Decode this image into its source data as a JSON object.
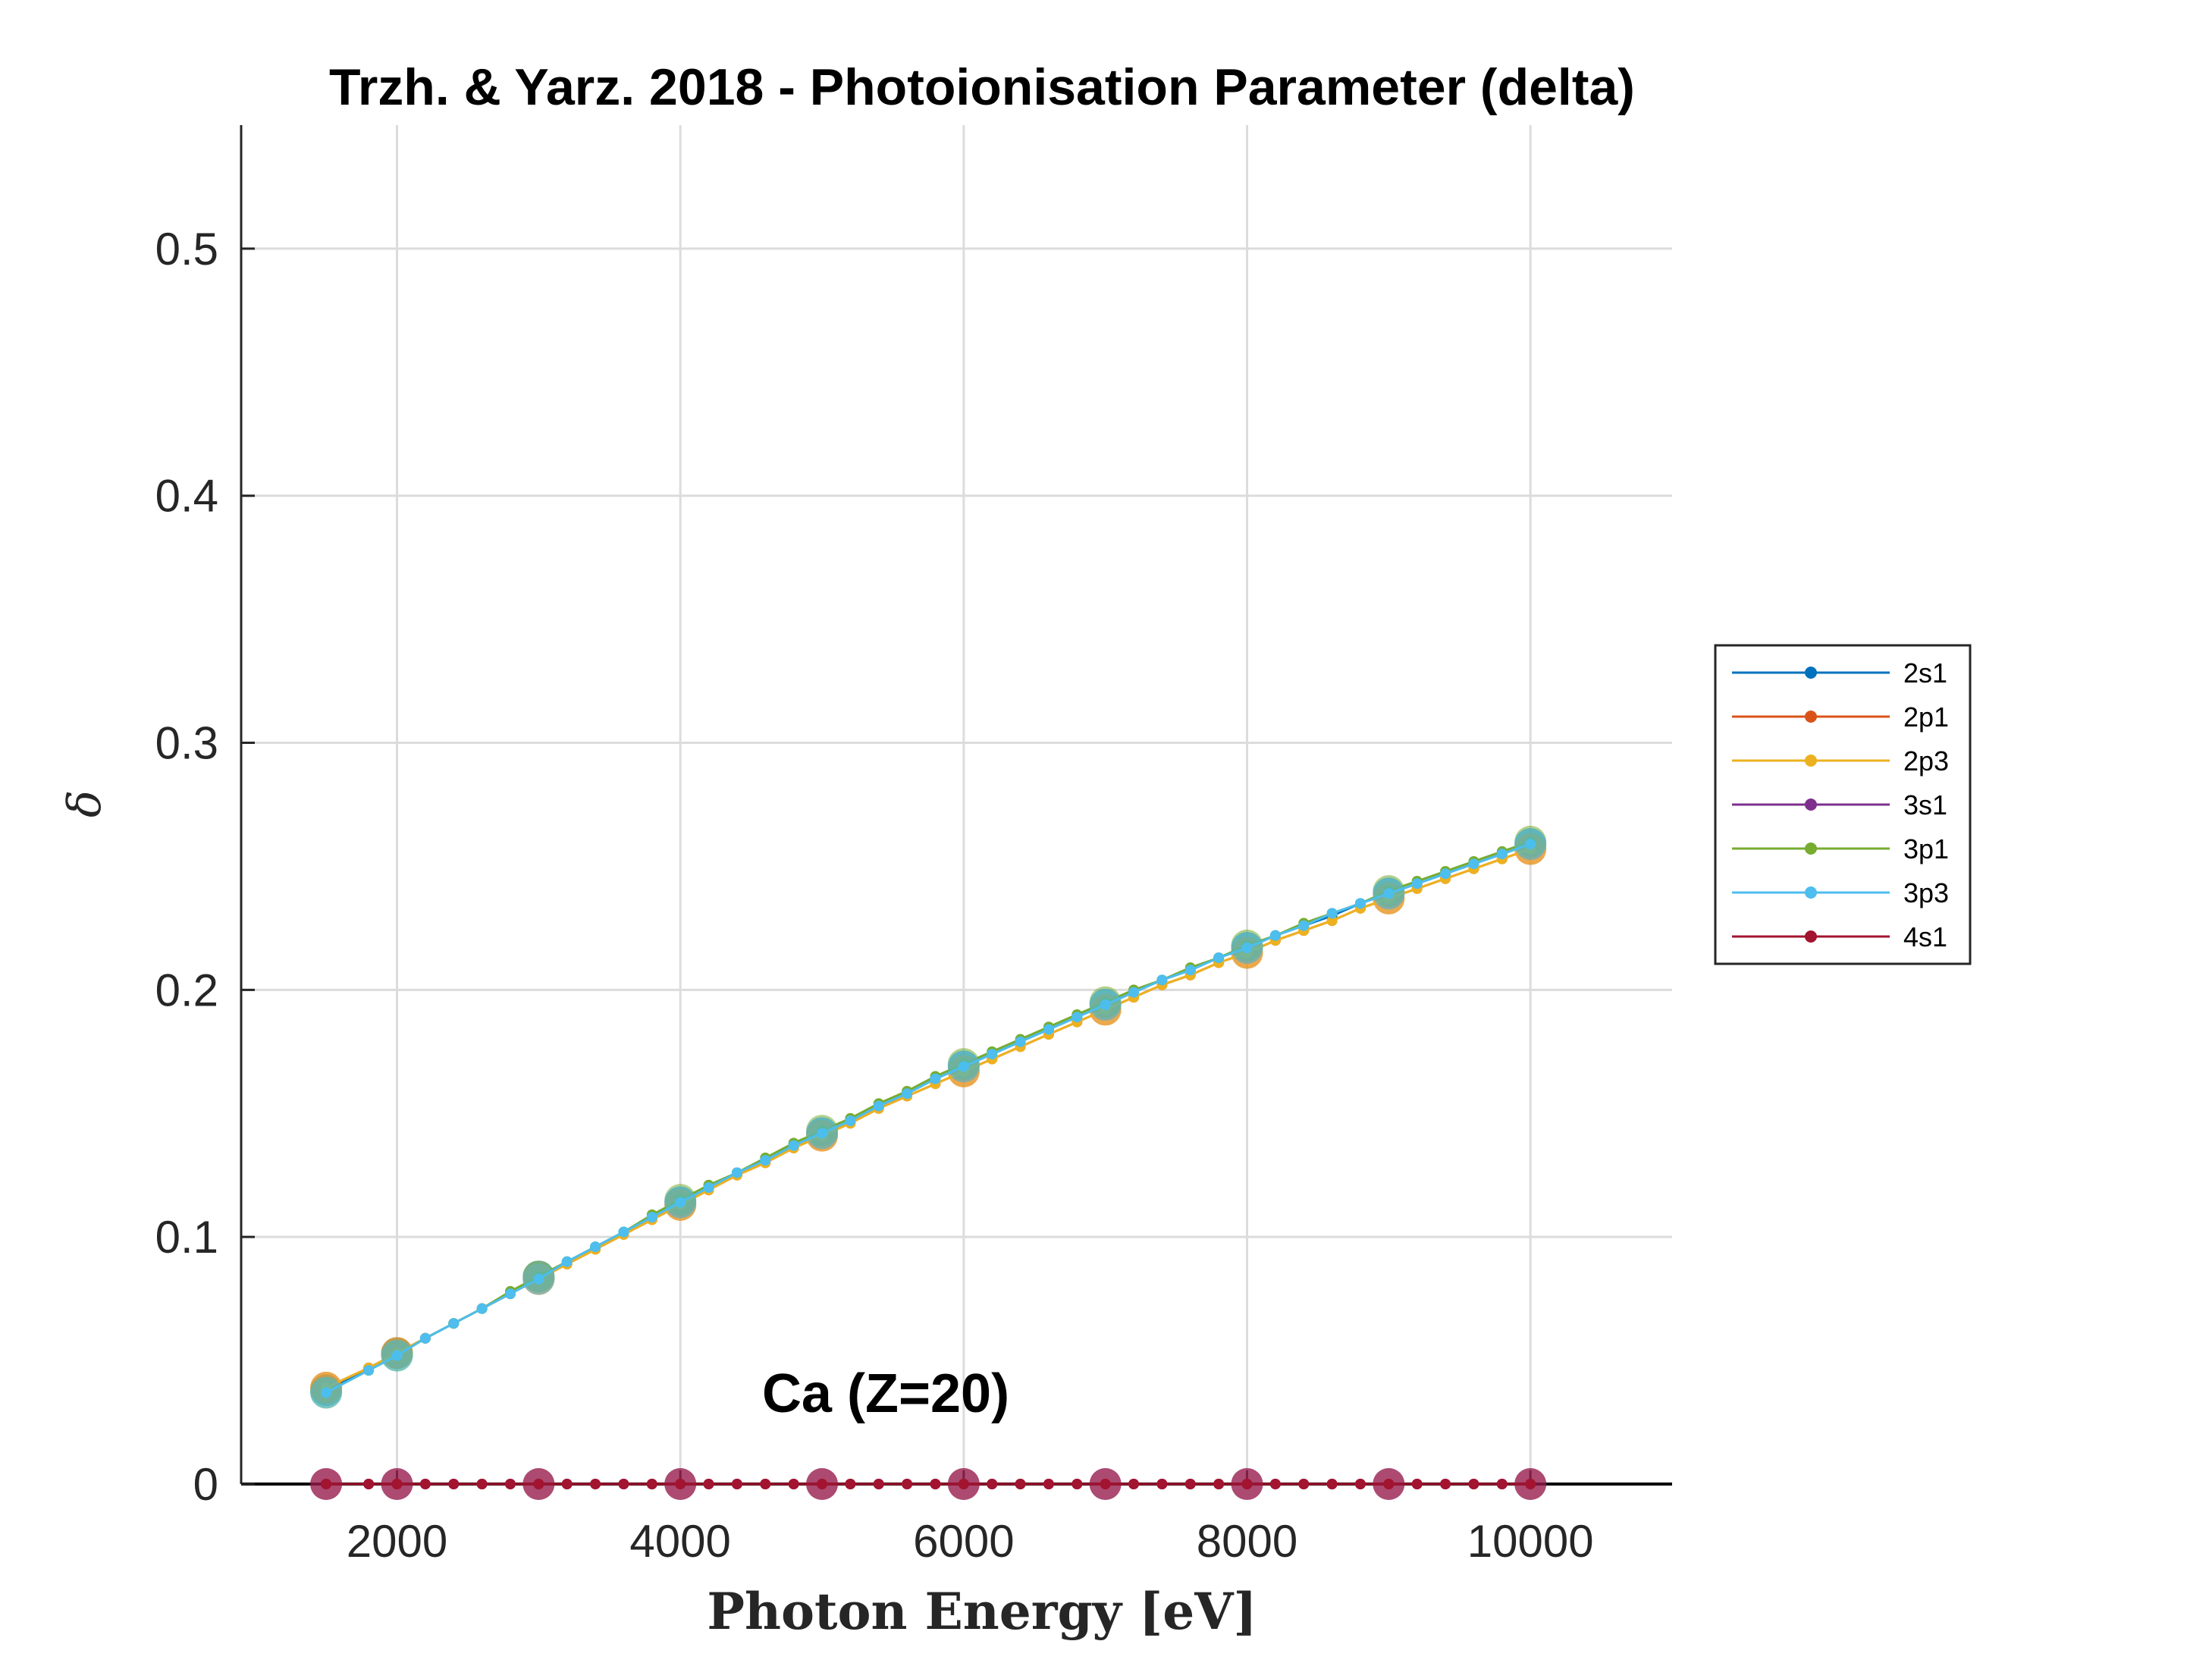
{
  "chart_data": {
    "type": "line",
    "title": "Trzh. & Yarz. 2018 - Photoionisation Parameter (delta)",
    "xlabel": "Photon Energy [eV]",
    "ylabel": "δ",
    "annotation": "Ca (Z=20)",
    "xlim": [
      900,
      11000
    ],
    "ylim": [
      0,
      0.55
    ],
    "xticks": [
      2000,
      4000,
      6000,
      8000,
      10000
    ],
    "xtick_labels": [
      "2000",
      "4000",
      "6000",
      "8000",
      "10000"
    ],
    "yticks": [
      0,
      0.1,
      0.2,
      0.3,
      0.4,
      0.5
    ],
    "ytick_labels": [
      "0",
      "0.1",
      "0.2",
      "0.3",
      "0.4",
      "0.5"
    ],
    "grid": true,
    "legend_position": "right",
    "x": [
      1500,
      1800,
      2000,
      2200,
      2400,
      2600,
      2800,
      3000,
      3200,
      3400,
      3600,
      3800,
      4000,
      4200,
      4400,
      4600,
      4800,
      5000,
      5200,
      5400,
      5600,
      5800,
      6000,
      6200,
      6400,
      6600,
      6800,
      7000,
      7200,
      7400,
      7600,
      7800,
      8000,
      8200,
      8400,
      8600,
      8800,
      9000,
      9200,
      9400,
      9600,
      9800,
      10000
    ],
    "marker_x": [
      1500,
      2000,
      3000,
      4000,
      5000,
      6000,
      7000,
      8000,
      9000,
      10000
    ],
    "series": [
      {
        "name": "2s1",
        "color": "#0072BD",
        "values": [
          0.038,
          0.047,
          0.053,
          0.059,
          0.065,
          0.071,
          0.077,
          0.084,
          0.09,
          0.096,
          0.102,
          0.108,
          0.114,
          0.12,
          0.126,
          0.131,
          0.137,
          0.142,
          0.147,
          0.153,
          0.158,
          0.164,
          0.169,
          0.174,
          0.179,
          0.184,
          0.189,
          0.194,
          0.199,
          0.204,
          0.208,
          0.213,
          0.217,
          0.222,
          0.226,
          0.23,
          0.235,
          0.239,
          0.243,
          0.247,
          0.251,
          0.255,
          0.259
        ]
      },
      {
        "name": "2p1",
        "color": "#D95319",
        "values": [
          0.039,
          0.047,
          0.053,
          0.059,
          0.065,
          0.071,
          0.077,
          0.083,
          0.089,
          0.095,
          0.101,
          0.107,
          0.113,
          0.119,
          0.125,
          0.13,
          0.136,
          0.141,
          0.146,
          0.152,
          0.157,
          0.162,
          0.167,
          0.172,
          0.177,
          0.182,
          0.187,
          0.192,
          0.197,
          0.202,
          0.206,
          0.211,
          0.215,
          0.22,
          0.224,
          0.228,
          0.233,
          0.237,
          0.241,
          0.245,
          0.249,
          0.253,
          0.257
        ]
      },
      {
        "name": "2p3",
        "color": "#EDB120",
        "values": [
          0.039,
          0.047,
          0.053,
          0.059,
          0.065,
          0.071,
          0.077,
          0.083,
          0.089,
          0.095,
          0.101,
          0.107,
          0.113,
          0.119,
          0.125,
          0.13,
          0.136,
          0.141,
          0.146,
          0.152,
          0.157,
          0.162,
          0.167,
          0.172,
          0.177,
          0.182,
          0.187,
          0.192,
          0.197,
          0.202,
          0.206,
          0.211,
          0.215,
          0.22,
          0.224,
          0.228,
          0.233,
          0.237,
          0.241,
          0.245,
          0.249,
          0.253,
          0.257
        ]
      },
      {
        "name": "3s1",
        "color": "#7E2F8E",
        "values": [
          0,
          0,
          0,
          0,
          0,
          0,
          0,
          0,
          0,
          0,
          0,
          0,
          0,
          0,
          0,
          0,
          0,
          0,
          0,
          0,
          0,
          0,
          0,
          0,
          0,
          0,
          0,
          0,
          0,
          0,
          0,
          0,
          0,
          0,
          0,
          0,
          0,
          0,
          0,
          0,
          0,
          0,
          0
        ]
      },
      {
        "name": "3p1",
        "color": "#77AC30",
        "values": [
          0.037,
          0.046,
          0.052,
          0.059,
          0.065,
          0.071,
          0.078,
          0.084,
          0.09,
          0.096,
          0.102,
          0.109,
          0.115,
          0.121,
          0.126,
          0.132,
          0.138,
          0.143,
          0.148,
          0.154,
          0.159,
          0.165,
          0.17,
          0.175,
          0.18,
          0.185,
          0.19,
          0.195,
          0.2,
          0.204,
          0.209,
          0.213,
          0.218,
          0.222,
          0.227,
          0.231,
          0.235,
          0.24,
          0.244,
          0.248,
          0.252,
          0.256,
          0.26
        ]
      },
      {
        "name": "3p3",
        "color": "#4DBEEE",
        "values": [
          0.037,
          0.046,
          0.052,
          0.059,
          0.065,
          0.071,
          0.077,
          0.083,
          0.09,
          0.096,
          0.102,
          0.108,
          0.114,
          0.12,
          0.126,
          0.131,
          0.137,
          0.142,
          0.147,
          0.153,
          0.158,
          0.164,
          0.169,
          0.174,
          0.179,
          0.184,
          0.189,
          0.194,
          0.199,
          0.204,
          0.208,
          0.213,
          0.217,
          0.222,
          0.226,
          0.231,
          0.235,
          0.239,
          0.243,
          0.247,
          0.251,
          0.255,
          0.259
        ]
      },
      {
        "name": "4s1",
        "color": "#A2142F",
        "values": [
          0,
          0,
          0,
          0,
          0,
          0,
          0,
          0,
          0,
          0,
          0,
          0,
          0,
          0,
          0,
          0,
          0,
          0,
          0,
          0,
          0,
          0,
          0,
          0,
          0,
          0,
          0,
          0,
          0,
          0,
          0,
          0,
          0,
          0,
          0,
          0,
          0,
          0,
          0,
          0,
          0,
          0,
          0
        ]
      }
    ]
  }
}
